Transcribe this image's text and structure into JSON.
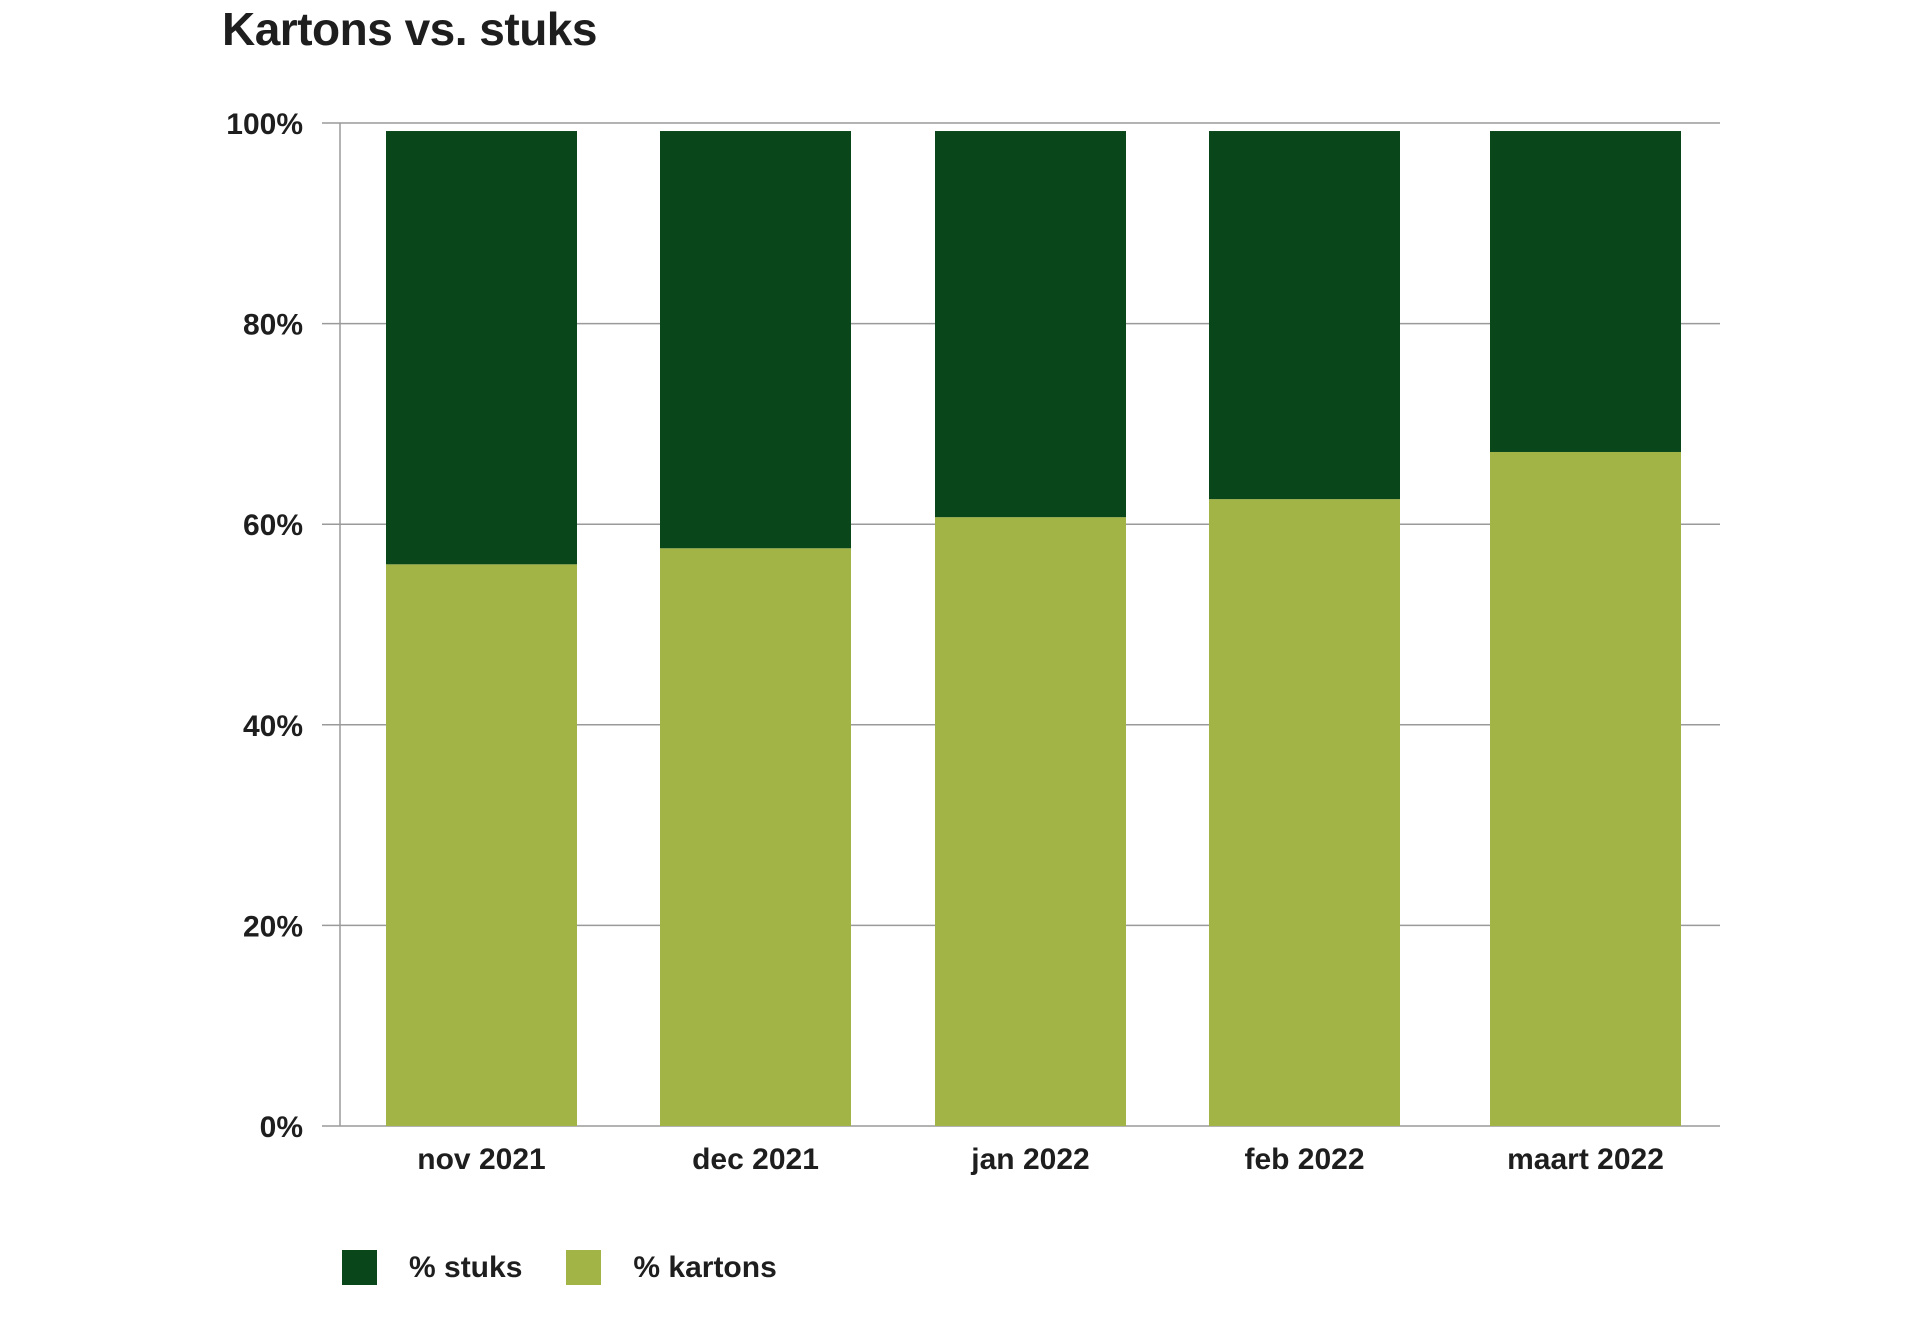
{
  "chart_data": {
    "type": "bar",
    "stacked": true,
    "title": "Kartons vs. stuks",
    "xlabel": "",
    "ylabel": "",
    "ylim": [
      0,
      100
    ],
    "yticks": [
      "0%",
      "20%",
      "40%",
      "60%",
      "80%",
      "100%"
    ],
    "categories": [
      "nov 2021",
      "dec 2021",
      "jan 2022",
      "feb 2022",
      "maart 2022"
    ],
    "series": [
      {
        "name": "% kartons",
        "color": "#a3b446",
        "values": [
          56,
          57.6,
          60.7,
          62.5,
          67.2
        ]
      },
      {
        "name": "% stuks",
        "color": "#09471a",
        "values": [
          43.2,
          41.6,
          38.5,
          36.7,
          32
        ]
      }
    ],
    "legend": {
      "position": "bottom-left",
      "items": [
        {
          "label": "% stuks",
          "color": "#09471a"
        },
        {
          "label": "% kartons",
          "color": "#a3b446"
        }
      ]
    },
    "grid": true
  }
}
